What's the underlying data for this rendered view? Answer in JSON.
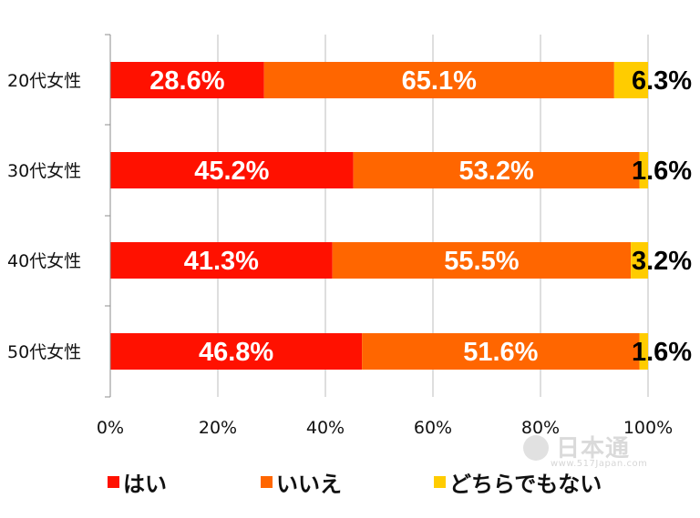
{
  "chart_data": {
    "type": "bar",
    "orientation": "horizontal",
    "stacked": true,
    "categories": [
      "20代女性",
      "30代女性",
      "40代女性",
      "50代女性"
    ],
    "series": [
      {
        "name": "はい",
        "values": [
          28.6,
          45.2,
          41.3,
          46.8
        ],
        "color": "#ff1100",
        "labels": [
          "28.6%",
          "45.2%",
          "41.3%",
          "46.8%"
        ]
      },
      {
        "name": "いいえ",
        "values": [
          65.1,
          53.2,
          55.5,
          51.6
        ],
        "color": "#ff6600",
        "labels": [
          "65.1%",
          "53.2%",
          "55.5%",
          "51.6%"
        ]
      },
      {
        "name": "どちらでもない",
        "values": [
          6.3,
          1.6,
          3.2,
          1.6
        ],
        "color": "#ffcc00",
        "labels": [
          "6.3%",
          "1.6%",
          "3.2%",
          "1.6%"
        ]
      }
    ],
    "xlim": [
      0,
      100
    ],
    "xticks": [
      "0%",
      "20%",
      "40%",
      "60%",
      "80%",
      "100%"
    ],
    "grid": true,
    "legend_position": "bottom"
  },
  "watermark": {
    "text": "日本通",
    "url": "www.517Japan.com"
  }
}
